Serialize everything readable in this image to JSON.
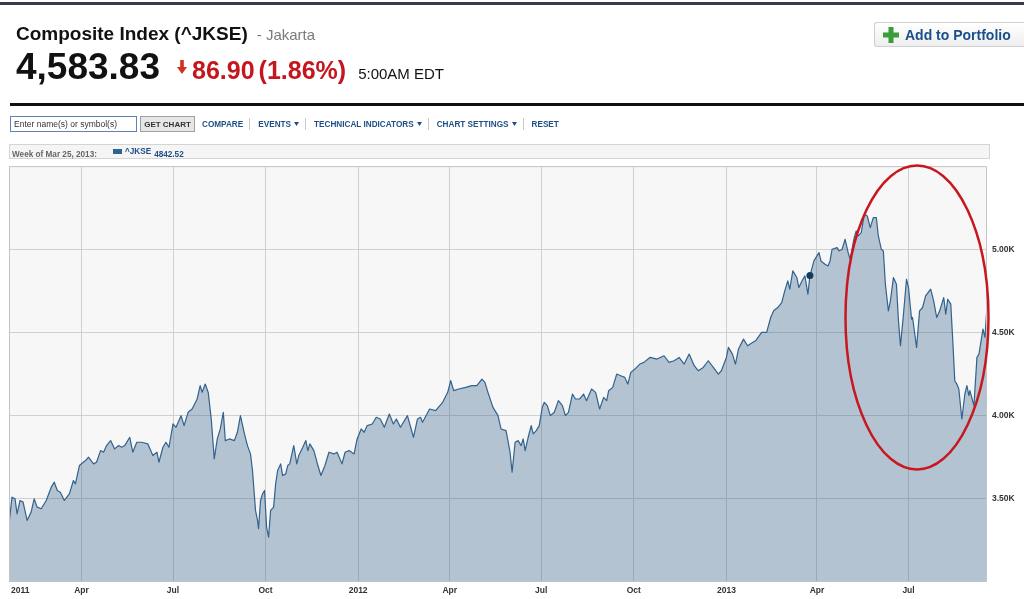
{
  "chart_data": {
    "type": "area",
    "title": "Composite Index (^JKSE)",
    "subtitle": "- Jakarta",
    "annotations": [
      "4,583.83",
      "86.90",
      "(1.86%)",
      "5:00AM EDT",
      "Add to Portfolio",
      "Enter name(s) or symbol(s)",
      "GET CHART",
      "COMPARE",
      "EVENTS",
      "TECHNICAL INDICATORS",
      "CHART SETTINGS",
      "RESET",
      "Week of Mar 25, 2013:",
      "4842.52"
    ],
    "xlim": [
      "2011-01-19",
      "2013-09-17"
    ],
    "xticks": [
      {
        "value": "2011-01-19",
        "label": "2011"
      },
      {
        "value": "2011-04-01",
        "label": "Apr"
      },
      {
        "value": "2011-07-01",
        "label": "Jul"
      },
      {
        "value": "2011-10-01",
        "label": "Oct"
      },
      {
        "value": "2012-01-01",
        "label": "2012"
      },
      {
        "value": "2012-04-01",
        "label": "Apr"
      },
      {
        "value": "2012-07-01",
        "label": "Jul"
      },
      {
        "value": "2012-10-01",
        "label": "Oct"
      },
      {
        "value": "2013-01-01",
        "label": "2013"
      },
      {
        "value": "2013-04-01",
        "label": "Apr"
      },
      {
        "value": "2013-07-01",
        "label": "Jul"
      }
    ],
    "ylim": [
      3000,
      5500
    ],
    "yticks": [
      {
        "value": 3500,
        "label": "3.50K"
      },
      {
        "value": 4000,
        "label": "4.00K"
      },
      {
        "value": 4500,
        "label": "4.50K"
      },
      {
        "value": 5000,
        "label": "5.00K"
      }
    ],
    "grid": true,
    "legend": "top left",
    "series": [
      {
        "name": "^JKSE",
        "color": "#33628c",
        "x": [
          "2011-01-19",
          "2011-01-22",
          "2011-01-25",
          "2011-01-27",
          "2011-01-30",
          "2011-02-02",
          "2011-02-06",
          "2011-02-10",
          "2011-02-13",
          "2011-02-16",
          "2011-02-20",
          "2011-02-25",
          "2011-03-02",
          "2011-03-05",
          "2011-03-08",
          "2011-03-11",
          "2011-03-15",
          "2011-03-20",
          "2011-03-24",
          "2011-03-26",
          "2011-03-30",
          "2011-04-05",
          "2011-04-08",
          "2011-04-13",
          "2011-04-16",
          "2011-04-20",
          "2011-04-23",
          "2011-04-26",
          "2011-04-30",
          "2011-05-04",
          "2011-05-08",
          "2011-05-11",
          "2011-05-14",
          "2011-05-19",
          "2011-05-22",
          "2011-05-26",
          "2011-05-31",
          "2011-06-06",
          "2011-06-11",
          "2011-06-15",
          "2011-06-17",
          "2011-06-21",
          "2011-06-24",
          "2011-06-27",
          "2011-07-01",
          "2011-07-04",
          "2011-07-09",
          "2011-07-12",
          "2011-07-16",
          "2011-07-20",
          "2011-07-25",
          "2011-07-28",
          "2011-07-30",
          "2011-08-02",
          "2011-08-05",
          "2011-08-08",
          "2011-08-11",
          "2011-08-14",
          "2011-08-17",
          "2011-08-20",
          "2011-08-22",
          "2011-08-26",
          "2011-08-31",
          "2011-09-03",
          "2011-09-06",
          "2011-09-10",
          "2011-09-13",
          "2011-09-16",
          "2011-09-18",
          "2011-09-21",
          "2011-09-23",
          "2011-09-24",
          "2011-09-26",
          "2011-09-28",
          "2011-09-30",
          "2011-10-02",
          "2011-10-04",
          "2011-10-06",
          "2011-10-09",
          "2011-10-11",
          "2011-10-13",
          "2011-10-16",
          "2011-10-18",
          "2011-10-21",
          "2011-10-23",
          "2011-10-25",
          "2011-10-29",
          "2011-11-01",
          "2011-11-03",
          "2011-11-07",
          "2011-11-10",
          "2011-11-12",
          "2011-11-14",
          "2011-11-18",
          "2011-11-22",
          "2011-11-25",
          "2011-11-29",
          "2011-12-03",
          "2011-12-08",
          "2011-12-11",
          "2011-12-16",
          "2011-12-19",
          "2011-12-23",
          "2011-12-28",
          "2011-12-31",
          "2012-01-04",
          "2012-01-07",
          "2012-01-10",
          "2012-01-15",
          "2012-01-19",
          "2012-01-23",
          "2012-01-27",
          "2012-02-01",
          "2012-02-05",
          "2012-02-08",
          "2012-02-12",
          "2012-02-19",
          "2012-02-25",
          "2012-02-29",
          "2012-03-03",
          "2012-03-05",
          "2012-03-12",
          "2012-03-18",
          "2012-03-25",
          "2012-03-30",
          "2012-04-02",
          "2012-04-05",
          "2012-04-10",
          "2012-04-17",
          "2012-04-23",
          "2012-04-28",
          "2012-05-03",
          "2012-05-06",
          "2012-05-09",
          "2012-05-14",
          "2012-05-19",
          "2012-05-22",
          "2012-05-27",
          "2012-05-31",
          "2012-06-02",
          "2012-06-05",
          "2012-06-08",
          "2012-06-11",
          "2012-06-13",
          "2012-06-15",
          "2012-06-18",
          "2012-06-21",
          "2012-06-23",
          "2012-06-26",
          "2012-06-29",
          "2012-07-02",
          "2012-07-04",
          "2012-07-07",
          "2012-07-10",
          "2012-07-14",
          "2012-07-18",
          "2012-07-22",
          "2012-07-25",
          "2012-07-28",
          "2012-08-01",
          "2012-08-04",
          "2012-08-08",
          "2012-08-12",
          "2012-08-15",
          "2012-08-20",
          "2012-08-24",
          "2012-08-28",
          "2012-09-01",
          "2012-09-04",
          "2012-09-06",
          "2012-09-10",
          "2012-09-14",
          "2012-09-18",
          "2012-09-22",
          "2012-09-25",
          "2012-09-28",
          "2012-10-02",
          "2012-10-07",
          "2012-10-11",
          "2012-10-17",
          "2012-10-24",
          "2012-10-31",
          "2012-11-05",
          "2012-11-10",
          "2012-11-15",
          "2012-11-20",
          "2012-11-25",
          "2012-11-30",
          "2012-12-04",
          "2012-12-09",
          "2012-12-14",
          "2012-12-19",
          "2012-12-24",
          "2012-12-27",
          "2013-01-01",
          "2013-01-03",
          "2013-01-07",
          "2013-01-10",
          "2013-01-13",
          "2013-01-18",
          "2013-01-22",
          "2013-01-27",
          "2013-01-30",
          "2013-02-05",
          "2013-02-10",
          "2013-02-14",
          "2013-02-17",
          "2013-02-21",
          "2013-02-25",
          "2013-02-28",
          "2013-03-03",
          "2013-03-05",
          "2013-03-08",
          "2013-03-12",
          "2013-03-14",
          "2013-03-18",
          "2013-03-20",
          "2013-03-23",
          "2013-03-25",
          "2013-03-29",
          "2013-04-01",
          "2013-04-03",
          "2013-04-05",
          "2013-04-09",
          "2013-04-12",
          "2013-04-14",
          "2013-04-16",
          "2013-04-21",
          "2013-04-23",
          "2013-04-26",
          "2013-04-29",
          "2013-05-02",
          "2013-05-04",
          "2013-05-08",
          "2013-05-10",
          "2013-05-12",
          "2013-05-15",
          "2013-05-18",
          "2013-05-21",
          "2013-05-24",
          "2013-05-27",
          "2013-05-30",
          "2013-06-01",
          "2013-06-04",
          "2013-06-06",
          "2013-06-08",
          "2013-06-11",
          "2013-06-13",
          "2013-06-16",
          "2013-06-19",
          "2013-06-21",
          "2013-06-23",
          "2013-06-26",
          "2013-06-29",
          "2013-07-01",
          "2013-07-04",
          "2013-07-05",
          "2013-07-09",
          "2013-07-12",
          "2013-07-15",
          "2013-07-18",
          "2013-07-23",
          "2013-07-26",
          "2013-07-29",
          "2013-08-01",
          "2013-08-05",
          "2013-08-07",
          "2013-08-09",
          "2013-08-12",
          "2013-08-14",
          "2013-08-16",
          "2013-08-18",
          "2013-08-20",
          "2013-08-23",
          "2013-08-26",
          "2013-08-28",
          "2013-08-30",
          "2013-08-31",
          "2013-09-04",
          "2013-09-07",
          "2013-09-09",
          "2013-09-13",
          "2013-09-15",
          "2013-09-17"
        ],
        "values": [
          3350,
          3510,
          3500,
          3410,
          3490,
          3480,
          3370,
          3420,
          3500,
          3450,
          3440,
          3490,
          3570,
          3600,
          3550,
          3540,
          3490,
          3530,
          3610,
          3590,
          3700,
          3730,
          3750,
          3710,
          3720,
          3790,
          3780,
          3820,
          3850,
          3800,
          3820,
          3810,
          3820,
          3870,
          3780,
          3840,
          3840,
          3830,
          3760,
          3780,
          3720,
          3810,
          3840,
          3810,
          3950,
          3930,
          4000,
          3940,
          4020,
          4040,
          4100,
          4180,
          4140,
          4190,
          4140,
          3980,
          3740,
          3860,
          3920,
          4020,
          3850,
          3860,
          3850,
          3900,
          4000,
          3890,
          3820,
          3770,
          3670,
          3430,
          3370,
          3320,
          3490,
          3530,
          3550,
          3330,
          3270,
          3430,
          3450,
          3590,
          3670,
          3710,
          3640,
          3650,
          3700,
          3710,
          3820,
          3710,
          3760,
          3810,
          3850,
          3790,
          3830,
          3790,
          3700,
          3640,
          3700,
          3780,
          3770,
          3780,
          3710,
          3780,
          3790,
          3770,
          3860,
          3920,
          3900,
          3940,
          3950,
          3990,
          3980,
          3930,
          4010,
          3950,
          3980,
          3930,
          4000,
          3870,
          3980,
          3990,
          3960,
          4040,
          4030,
          4080,
          4140,
          4210,
          4150,
          4160,
          4170,
          4180,
          4180,
          4220,
          4200,
          4140,
          4050,
          4000,
          3920,
          3910,
          3780,
          3660,
          3840,
          3850,
          3820,
          3860,
          3790,
          3870,
          3940,
          3890,
          3910,
          3940,
          4050,
          4080,
          4060,
          4000,
          4020,
          4090,
          4060,
          4000,
          4020,
          4130,
          4100,
          4100,
          4130,
          4090,
          4160,
          4140,
          4040,
          4110,
          4090,
          4150,
          4170,
          4250,
          4240,
          4230,
          4190,
          4260,
          4280,
          4310,
          4320,
          4350,
          4340,
          4360,
          4320,
          4330,
          4350,
          4310,
          4370,
          4300,
          4270,
          4290,
          4330,
          4290,
          4250,
          4270,
          4350,
          4410,
          4370,
          4310,
          4400,
          4460,
          4420,
          4440,
          4450,
          4500,
          4500,
          4590,
          4630,
          4650,
          4680,
          4750,
          4810,
          4760,
          4870,
          4830,
          4770,
          4820,
          4840,
          4730,
          4840,
          4930,
          4960,
          4980,
          4930,
          4910,
          4900,
          4930,
          5000,
          5010,
          4990,
          5000,
          5060,
          4980,
          4940,
          5070,
          5110,
          5080,
          5100,
          5210,
          5200,
          5130,
          5190,
          5190,
          5080,
          5000,
          4990,
          4790,
          4630,
          4690,
          4830,
          4790,
          4570,
          4420,
          4610,
          4820,
          4770,
          4580,
          4590,
          4410,
          4630,
          4650,
          4720,
          4760,
          4690,
          4590,
          4630,
          4710,
          4610,
          4700,
          4670,
          4450,
          4210,
          4190,
          4160,
          3980,
          4130,
          4180,
          4120,
          4150,
          4060,
          4350,
          4370,
          4520,
          4470,
          4660
        ]
      },
      {
        "type": "scatter",
        "color": "#163a5e",
        "marker": "circle",
        "x": [
          "2013-03-25"
        ],
        "values": [
          4842.52
        ]
      }
    ]
  }
}
